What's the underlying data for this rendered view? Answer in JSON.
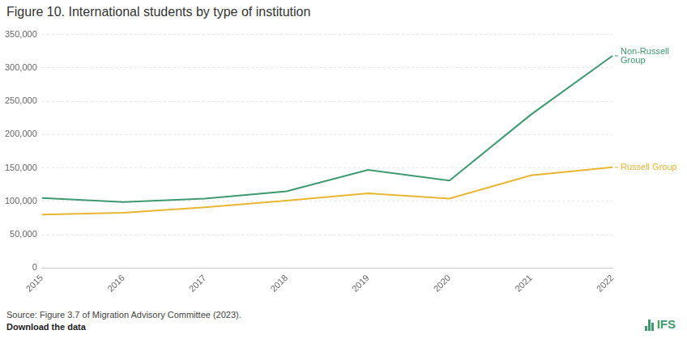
{
  "chart_data": {
    "type": "line",
    "title": "Figure 10. International students by type of institution",
    "source": "Source: Figure 3.7 of Migration Advisory Committee (2023).",
    "link_text": "Download the data",
    "logo": "IFS",
    "categories": [
      "2015",
      "2016",
      "2017",
      "2018",
      "2019",
      "2020",
      "2021",
      "2022"
    ],
    "series": [
      {
        "name": "Non-Russell Group",
        "color": "#3d9a6e",
        "values": [
          105000,
          99000,
          104000,
          115000,
          147000,
          131000,
          230000,
          318000
        ]
      },
      {
        "name": "Russell Group",
        "color": "#eab530",
        "values": [
          80000,
          83000,
          91000,
          101000,
          112000,
          104000,
          139000,
          151000
        ]
      }
    ],
    "ylim": [
      0,
      350000
    ],
    "yticks": [
      0,
      {
        "value": 50000,
        "label": "50,000"
      },
      {
        "value": 100000,
        "label": "100,000"
      },
      {
        "value": 150000,
        "label": "150,000"
      },
      {
        "value": 200000,
        "label": "200,000"
      },
      {
        "value": 250000,
        "label": "250,000"
      },
      {
        "value": 300000,
        "label": "300,000"
      },
      {
        "value": 350000,
        "label": "350,000"
      }
    ],
    "grid": true
  }
}
